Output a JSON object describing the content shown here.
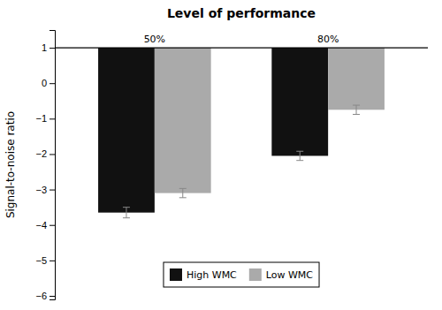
{
  "chart_data": {
    "type": "bar",
    "title": "Level of performance",
    "ylabel": "Signal-to-noise ratio",
    "categories": [
      "50%",
      "80%"
    ],
    "series": [
      {
        "name": "High WMC",
        "color": "#111111",
        "values": [
          -3.65,
          -2.05
        ],
        "errors": [
          0.15,
          0.13
        ]
      },
      {
        "name": "Low WMC",
        "color": "#aaaaaa",
        "values": [
          -3.1,
          -0.75
        ],
        "errors": [
          0.13,
          0.13
        ]
      }
    ],
    "baseline": 1,
    "ylim": [
      -6.1,
      1.5
    ],
    "yticks": [
      1,
      0,
      {
        "value": -1,
        "label": "−1"
      },
      {
        "value": -2,
        "label": "−2"
      },
      {
        "value": -3,
        "label": "−3"
      },
      {
        "value": -4,
        "label": "−4"
      },
      {
        "value": -5,
        "label": "−5"
      },
      {
        "value": -6,
        "label": "−6"
      }
    ],
    "legend": "bottom",
    "grid": false,
    "tick_labels": "y"
  }
}
